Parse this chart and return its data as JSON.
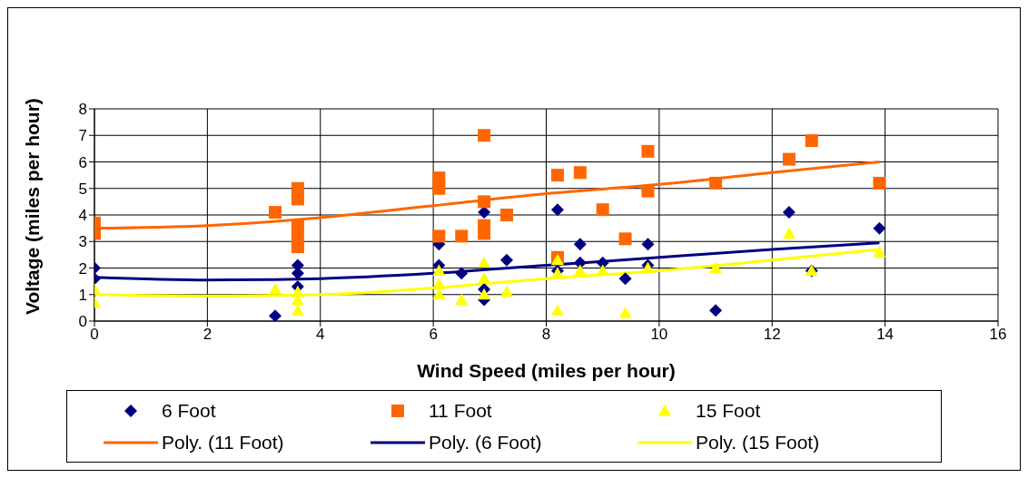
{
  "chart_data": {
    "type": "scatter",
    "xlabel": "Wind Speed (miles per hour)",
    "ylabel": "Voltage (miles per hour)",
    "xlim": [
      0,
      16
    ],
    "xticks": [
      0,
      2,
      4,
      6,
      8,
      10,
      12,
      14,
      16
    ],
    "ylim": [
      0,
      8
    ],
    "yticks": [
      0,
      1,
      2,
      3,
      4,
      5,
      6,
      7,
      8
    ],
    "grid": true,
    "legend": "bottom",
    "series": [
      {
        "name": "6 Foot",
        "color": "#000080",
        "marker": "diamond",
        "x": [
          0,
          0,
          3.2,
          3.6,
          3.6,
          3.6,
          6.1,
          6.1,
          6.5,
          6.9,
          6.9,
          6.9,
          7.3,
          8.2,
          8.2,
          8.6,
          8.6,
          9.0,
          9.4,
          9.8,
          9.8,
          11,
          12.3,
          12.7,
          13.9
        ],
        "values": [
          2.0,
          1.6,
          0.2,
          2.1,
          1.8,
          1.3,
          2.9,
          2.1,
          1.8,
          4.1,
          0.8,
          1.2,
          2.3,
          4.2,
          1.9,
          2.9,
          2.2,
          2.2,
          1.6,
          2.9,
          2.1,
          0.4,
          4.1,
          1.9,
          3.5
        ]
      },
      {
        "name": "11 Foot",
        "color": "#ff6600",
        "marker": "square",
        "x": [
          0,
          0,
          3.2,
          3.6,
          3.6,
          3.6,
          3.6,
          3.6,
          6.1,
          6.1,
          6.1,
          6.5,
          6.9,
          6.9,
          6.9,
          6.9,
          7.3,
          8.2,
          8.2,
          8.6,
          9.0,
          9.4,
          9.8,
          9.8,
          11,
          12.3,
          12.7,
          13.9
        ],
        "values": [
          3.7,
          3.3,
          4.1,
          5.0,
          4.6,
          3.6,
          3.2,
          2.8,
          5.4,
          5.0,
          3.2,
          3.2,
          7.0,
          4.5,
          3.6,
          3.3,
          4.0,
          5.5,
          2.4,
          5.6,
          4.2,
          3.1,
          6.4,
          4.9,
          5.2,
          6.1,
          6.8,
          5.2
        ]
      },
      {
        "name": "15 Foot",
        "color": "#ffff00",
        "marker": "triangle",
        "x": [
          0,
          0,
          3.2,
          3.6,
          3.6,
          3.6,
          6.1,
          6.1,
          6.1,
          6.5,
          6.9,
          6.9,
          6.9,
          7.3,
          8.2,
          8.2,
          8.2,
          8.6,
          9.0,
          9.4,
          9.8,
          11,
          12.3,
          12.7,
          13.9
        ],
        "values": [
          1.2,
          0.7,
          1.2,
          1.1,
          0.8,
          0.4,
          1.9,
          1.4,
          1.0,
          0.8,
          2.2,
          1.6,
          1.0,
          1.1,
          2.3,
          1.8,
          0.4,
          1.9,
          1.9,
          0.3,
          2.0,
          2.0,
          3.3,
          1.9,
          2.6
        ]
      },
      {
        "name": "Poly. (11 Foot)",
        "type": "line",
        "color": "#ff6600",
        "marker": "none",
        "x": [
          0,
          2,
          4,
          6,
          8,
          10,
          12,
          13.9
        ],
        "values": [
          3.5,
          3.6,
          3.9,
          4.35,
          4.8,
          5.15,
          5.6,
          6.0
        ]
      },
      {
        "name": "Poly. (6 Foot)",
        "type": "line",
        "color": "#000080",
        "marker": "none",
        "x": [
          0,
          2,
          4,
          6,
          8,
          10,
          12,
          13.9
        ],
        "values": [
          1.65,
          1.55,
          1.6,
          1.8,
          2.1,
          2.4,
          2.7,
          2.95
        ]
      },
      {
        "name": "Poly. (15 Foot)",
        "type": "line",
        "color": "#ffff00",
        "marker": "none",
        "x": [
          0,
          2,
          4,
          6,
          8,
          10,
          12,
          13.9
        ],
        "values": [
          1.0,
          0.95,
          1.0,
          1.25,
          1.6,
          1.9,
          2.3,
          2.7
        ]
      }
    ]
  }
}
